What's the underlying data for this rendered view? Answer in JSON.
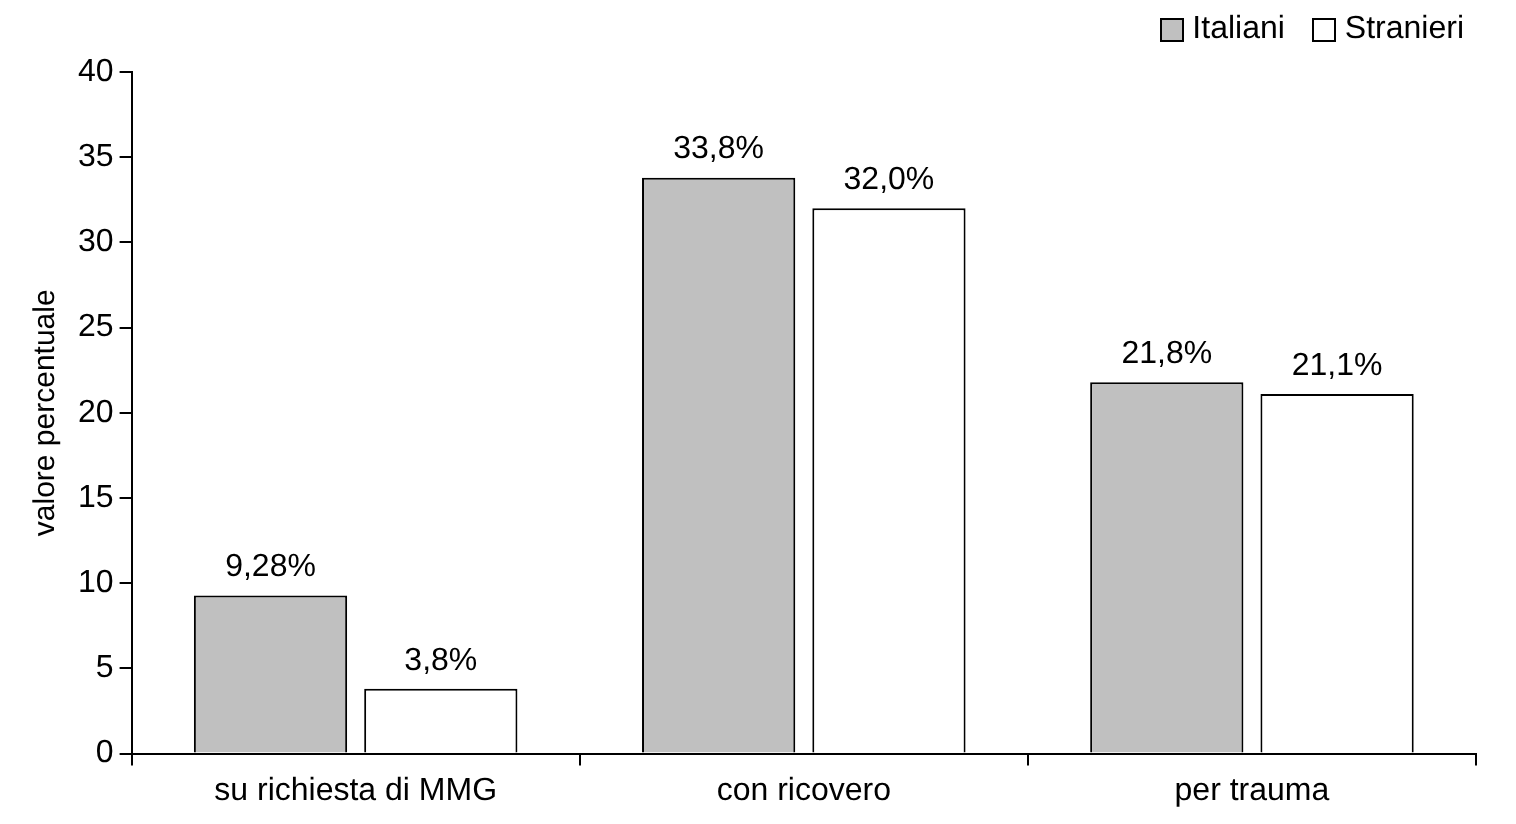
{
  "chart_data": {
    "type": "bar",
    "ylabel": "valore percentuale",
    "categories": [
      "su richiesta di MMG",
      "con ricovero",
      "per trauma"
    ],
    "series": [
      {
        "name": "Italiani",
        "color": "#c0c0c0",
        "values": [
          9.28,
          33.8,
          21.8
        ],
        "value_labels": [
          "9,28%",
          "33,8%",
          "21,8%"
        ]
      },
      {
        "name": "Stranieri",
        "color": "#ffffff",
        "values": [
          3.8,
          32.0,
          21.1
        ],
        "value_labels": [
          "3,8%",
          "32,0%",
          "21,1%"
        ]
      }
    ],
    "ylim": [
      0,
      40
    ],
    "yticks": [
      0,
      5,
      10,
      15,
      20,
      25,
      30,
      35,
      40
    ],
    "grid": false,
    "legend": "top right"
  }
}
